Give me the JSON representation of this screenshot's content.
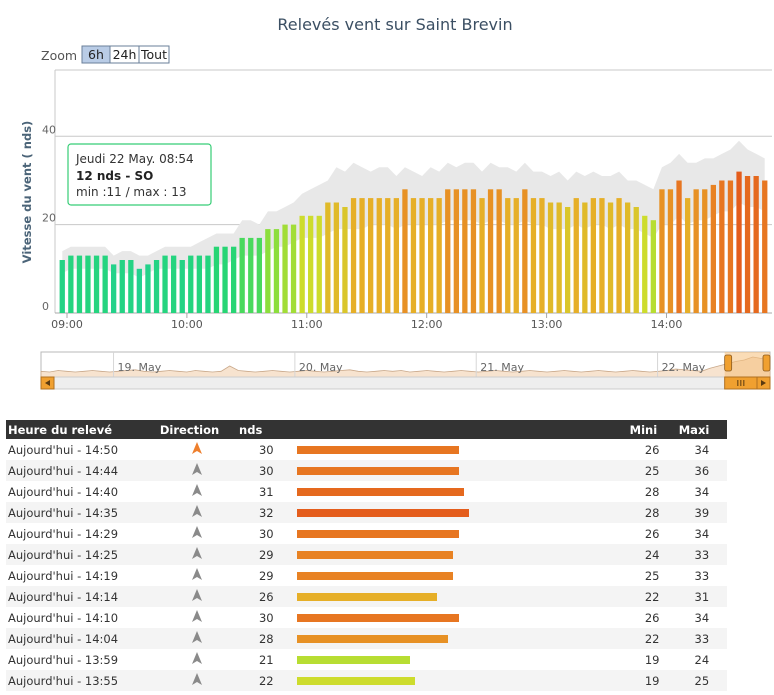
{
  "chart_data": {
    "type": "bar",
    "title": "Relevés vent sur Saint Brevin",
    "ylabel": "Vitesse du vent ( nds)",
    "ylim": [
      0,
      55
    ],
    "yticks": [
      0,
      20,
      40
    ],
    "xticks": [
      "09:00",
      "10:00",
      "11:00",
      "12:00",
      "13:00",
      "14:00"
    ],
    "x_start_hour": 8.9,
    "x_end_hour": 14.88,
    "values": [
      12,
      13,
      13,
      13,
      13,
      13,
      11,
      12,
      12,
      10,
      11,
      12,
      13,
      13,
      12,
      13,
      13,
      13,
      15,
      15,
      15,
      17,
      17,
      17,
      19,
      19,
      20,
      20,
      22,
      22,
      22,
      25,
      25,
      24,
      26,
      26,
      26,
      26,
      26,
      26,
      28,
      26,
      26,
      26,
      26,
      28,
      28,
      28,
      28,
      26,
      28,
      28,
      26,
      26,
      28,
      26,
      26,
      25,
      25,
      24,
      26,
      25,
      26,
      26,
      25,
      26,
      25,
      24,
      22,
      21,
      28,
      28,
      30,
      26,
      28,
      28,
      29,
      30,
      30,
      32,
      31,
      31,
      30
    ],
    "min_band": [
      9,
      10,
      10,
      10,
      10,
      10,
      9,
      9,
      9,
      8,
      9,
      10,
      10,
      10,
      10,
      10,
      10,
      10,
      11,
      11,
      12,
      13,
      13,
      13,
      14,
      15,
      15,
      16,
      17,
      17,
      17,
      18,
      19,
      19,
      19,
      19,
      20,
      20,
      20,
      19,
      20,
      20,
      20,
      20,
      20,
      21,
      21,
      21,
      21,
      20,
      21,
      21,
      20,
      20,
      21,
      20,
      20,
      19,
      19,
      19,
      20,
      19,
      20,
      20,
      19,
      20,
      19,
      19,
      18,
      17,
      20,
      20,
      22,
      20,
      21,
      21,
      22,
      23,
      23,
      25,
      24,
      24,
      23
    ],
    "max_band": [
      14,
      15,
      15,
      15,
      15,
      15,
      13,
      14,
      14,
      13,
      13,
      14,
      15,
      15,
      15,
      15,
      16,
      17,
      18,
      18,
      18,
      21,
      21,
      20,
      23,
      23,
      24,
      25,
      27,
      28,
      29,
      30,
      33,
      32,
      34,
      33,
      32,
      33,
      33,
      31,
      33,
      32,
      31,
      33,
      32,
      34,
      33,
      34,
      34,
      32,
      34,
      33,
      33,
      32,
      34,
      32,
      32,
      31,
      32,
      30,
      32,
      31,
      32,
      31,
      31,
      32,
      30,
      30,
      29,
      28,
      33,
      34,
      36,
      34,
      34,
      35,
      35,
      36,
      37,
      39,
      37,
      36,
      35
    ],
    "tooltip": {
      "title": "Jeudi 22 May. 08:54",
      "main": "12 nds - SO",
      "minmax": "min :11 / max : 13"
    },
    "zoom": {
      "label": "Zoom",
      "buttons": [
        "6h",
        "24h",
        "Tout"
      ],
      "active": "6h"
    },
    "navigator": {
      "labels": [
        "19. May",
        "20. May",
        "21. May",
        "22. May"
      ],
      "start_day": 18.6,
      "end_day": 22.62,
      "selection_start_day": 22.37,
      "selection_end_day": 22.62,
      "profile": [
        5,
        4,
        6,
        5,
        4,
        5,
        6,
        5,
        4,
        5,
        6,
        7,
        5,
        4,
        5,
        6,
        5,
        4,
        6,
        5,
        4,
        5,
        12,
        6,
        5,
        4,
        5,
        6,
        5,
        4,
        5,
        6,
        5,
        4,
        5,
        6,
        7,
        5,
        4,
        5,
        6,
        5,
        6,
        4,
        5,
        6,
        5,
        4,
        5,
        6,
        5,
        4,
        5,
        6,
        5,
        4,
        5,
        6,
        5,
        4,
        5,
        6,
        5,
        4,
        5,
        6,
        5,
        4,
        5,
        6,
        5,
        4,
        5,
        6,
        8,
        7,
        6,
        5,
        9,
        12,
        15,
        18,
        20,
        24,
        22,
        26
      ]
    },
    "colors": {
      "grid": "#c8c8c8",
      "band": "#e8e8e8",
      "tooltip_border": "#2ecc71",
      "navigator_fill": "#f7e3cf",
      "navigator_mask": "#f6c07a",
      "navigator_handle": "#f0a030"
    }
  },
  "table": {
    "headers": {
      "time": "Heure du relevé",
      "direction": "Direction",
      "nds": "nds",
      "mini": "Mini",
      "maxi": "Maxi"
    },
    "rows": [
      {
        "time": "Aujourd'hui - 14:50",
        "dir": "orange-arrow-icon",
        "nds": "30",
        "mini": "26",
        "maxi": "34",
        "value": 30
      },
      {
        "time": "Aujourd'hui - 14:44",
        "dir": "grey-arrow-icon",
        "nds": "30",
        "mini": "25",
        "maxi": "36",
        "value": 30
      },
      {
        "time": "Aujourd'hui - 14:40",
        "dir": "grey-arrow-icon",
        "nds": "31",
        "mini": "28",
        "maxi": "34",
        "value": 31
      },
      {
        "time": "Aujourd'hui - 14:35",
        "dir": "grey-arrow-icon",
        "nds": "32",
        "mini": "28",
        "maxi": "39",
        "value": 32
      },
      {
        "time": "Aujourd'hui - 14:29",
        "dir": "grey-arrow-icon",
        "nds": "30",
        "mini": "26",
        "maxi": "34",
        "value": 30
      },
      {
        "time": "Aujourd'hui - 14:25",
        "dir": "grey-arrow-icon",
        "nds": "29",
        "mini": "24",
        "maxi": "33",
        "value": 29
      },
      {
        "time": "Aujourd'hui - 14:19",
        "dir": "grey-arrow-icon",
        "nds": "29",
        "mini": "25",
        "maxi": "33",
        "value": 29
      },
      {
        "time": "Aujourd'hui - 14:14",
        "dir": "grey-arrow-icon",
        "nds": "26",
        "mini": "22",
        "maxi": "31",
        "value": 26
      },
      {
        "time": "Aujourd'hui - 14:10",
        "dir": "grey-arrow-icon",
        "nds": "30",
        "mini": "26",
        "maxi": "34",
        "value": 30
      },
      {
        "time": "Aujourd'hui - 14:04",
        "dir": "grey-arrow-icon",
        "nds": "28",
        "mini": "22",
        "maxi": "33",
        "value": 28
      },
      {
        "time": "Aujourd'hui - 13:59",
        "dir": "grey-arrow-icon",
        "nds": "21",
        "mini": "19",
        "maxi": "24",
        "value": 21
      },
      {
        "time": "Aujourd'hui - 13:55",
        "dir": "grey-arrow-icon",
        "nds": "22",
        "mini": "19",
        "maxi": "25",
        "value": 22
      }
    ]
  }
}
